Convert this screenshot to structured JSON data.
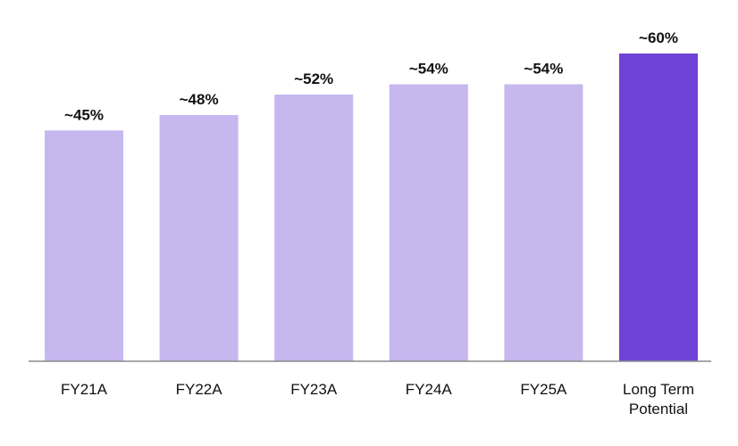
{
  "chart_data": {
    "type": "bar",
    "categories": [
      "FY21A",
      "FY22A",
      "FY23A",
      "FY24A",
      "FY25A",
      "Long Term Potential"
    ],
    "category_lines": [
      [
        "FY21A"
      ],
      [
        "FY22A"
      ],
      [
        "FY23A"
      ],
      [
        "FY24A"
      ],
      [
        "FY25A"
      ],
      [
        "Long Term",
        "Potential"
      ]
    ],
    "values": [
      45,
      48,
      52,
      54,
      54,
      60
    ],
    "value_labels": [
      "~45%",
      "~48%",
      "~52%",
      "~54%",
      "~54%",
      "~60%"
    ],
    "title": "",
    "xlabel": "",
    "ylabel": "",
    "ylim": [
      0,
      60
    ],
    "grid": false,
    "legend": "none",
    "colors": {
      "bar": "#c7b7ef",
      "bar_highlight": "#6f42d6",
      "axis": "#8a8a8a"
    },
    "highlight_index": 5
  }
}
